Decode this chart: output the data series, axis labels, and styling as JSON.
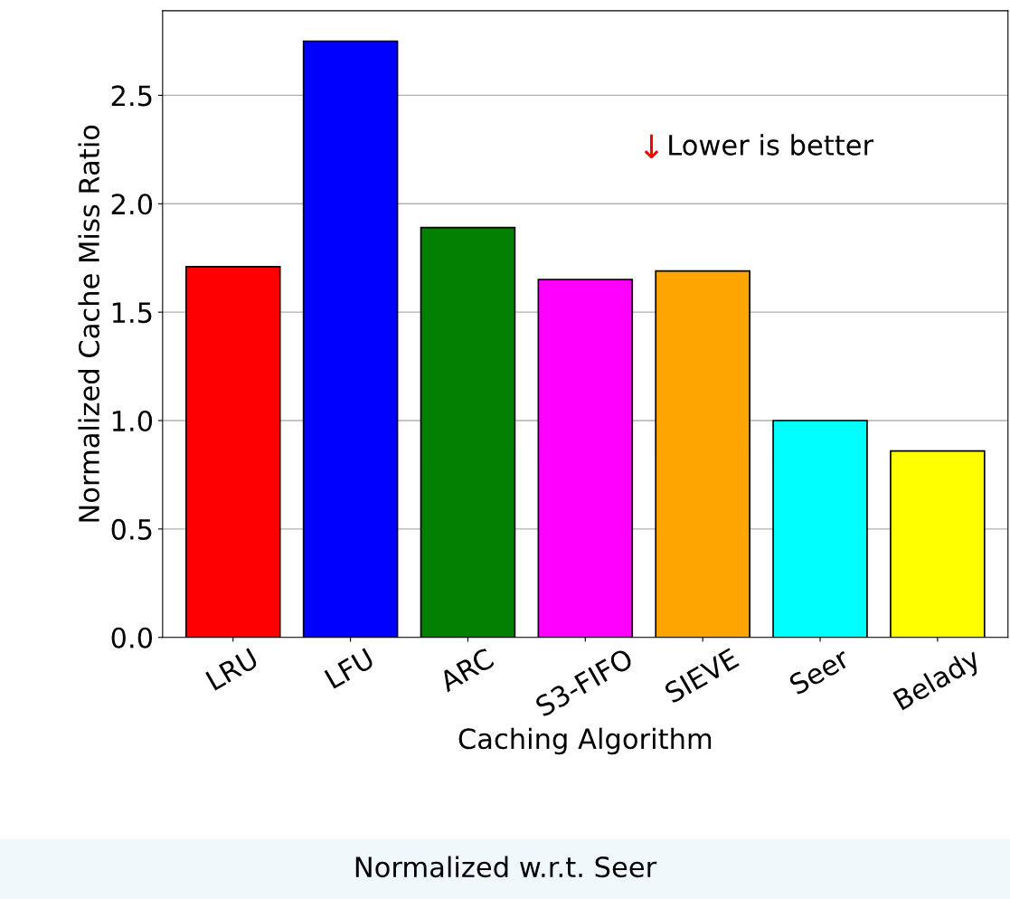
{
  "chart_data": {
    "type": "bar",
    "xlabel": "Caching Algorithm",
    "ylabel": "Normalized Cache Miss Ratio",
    "categories": [
      "LRU",
      "LFU",
      "ARC",
      "S3-FIFO",
      "SIEVE",
      "Seer",
      "Belady"
    ],
    "values": [
      1.71,
      2.75,
      1.89,
      1.65,
      1.69,
      1.0,
      0.86
    ],
    "colors": [
      "#ff0000",
      "#0000ff",
      "#007f00",
      "#ff00ff",
      "#ffa500",
      "#00ffff",
      "#ffff00"
    ],
    "ylim": [
      0,
      2.89
    ],
    "yticks": [
      {
        "value": 0,
        "label": "0.0"
      },
      0.5,
      {
        "value": 1,
        "label": "1.0"
      },
      1.5,
      {
        "value": 2,
        "label": "2.0"
      },
      2.5
    ],
    "grid": "y",
    "annotations": [
      "↓",
      "Lower is better",
      "Normalized w.r.t. Seer"
    ]
  }
}
